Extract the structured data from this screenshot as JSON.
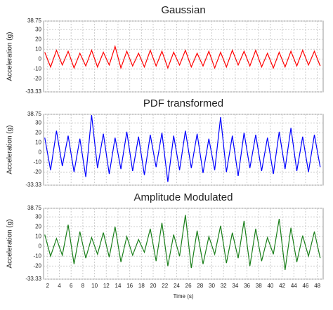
{
  "chart_data": [
    {
      "type": "line",
      "title": "Gaussian",
      "y_label": "Acceleration (g)",
      "color": "#ff0000",
      "x": [
        1.5,
        2.5,
        3.5,
        4.5,
        5.5,
        6.5,
        7.5,
        8.5,
        9.5,
        10.5,
        11.5,
        12.5,
        13.5,
        14.5,
        15.5,
        16.5,
        17.5,
        18.5,
        19.5,
        20.5,
        21.5,
        22.5,
        23.5,
        24.5,
        25.5,
        26.5,
        27.5,
        28.5,
        29.5,
        30.5,
        31.5,
        32.5,
        33.5,
        34.5,
        35.5,
        36.5,
        37.5,
        38.5,
        39.5,
        40.5,
        41.5,
        42.5,
        43.5,
        44.5,
        45.5,
        46.5,
        47.5,
        48.5
      ],
      "values": [
        7,
        -8,
        9,
        -6,
        8,
        -9,
        6,
        -7,
        9,
        -8,
        7,
        -6,
        13,
        -9,
        8,
        -7,
        6,
        -8,
        9,
        -7,
        8,
        -9,
        7,
        -6,
        9,
        -8,
        6,
        -7,
        8,
        -9,
        7,
        -8,
        9,
        -6,
        8,
        -7,
        9,
        -8,
        6,
        -9,
        7,
        -8,
        8,
        -7,
        9,
        -6,
        8,
        -7
      ],
      "xlim": [
        1.3,
        49
      ],
      "xticks": [
        2,
        4,
        6,
        8,
        10,
        12,
        14,
        16,
        18,
        20,
        22,
        24,
        26,
        28,
        30,
        32,
        34,
        36,
        38,
        40,
        42,
        44,
        46,
        48
      ],
      "ylim": [
        -33.33,
        38.75
      ],
      "yticks": [
        -33.33,
        -20,
        -10,
        0,
        10,
        20,
        30,
        38.75
      ],
      "grid": true
    },
    {
      "type": "line",
      "title": "PDF transformed",
      "y_label": "Acceleration (g)",
      "color": "#0000ff",
      "x": [
        1.5,
        2.5,
        3.5,
        4.5,
        5.5,
        6.5,
        7.5,
        8.5,
        9.5,
        10.5,
        11.5,
        12.5,
        13.5,
        14.5,
        15.5,
        16.5,
        17.5,
        18.5,
        19.5,
        20.5,
        21.5,
        22.5,
        23.5,
        24.5,
        25.5,
        26.5,
        27.5,
        28.5,
        29.5,
        30.5,
        31.5,
        32.5,
        33.5,
        34.5,
        35.5,
        36.5,
        37.5,
        38.5,
        39.5,
        40.5,
        41.5,
        42.5,
        43.5,
        44.5,
        45.5,
        46.5,
        47.5,
        48.5
      ],
      "values": [
        15,
        -18,
        22,
        -14,
        17,
        -20,
        14,
        -25,
        38,
        -16,
        19,
        -22,
        15,
        -17,
        21,
        -19,
        16,
        -23,
        18,
        -15,
        20,
        -30,
        17,
        -18,
        22,
        -16,
        19,
        -21,
        14,
        -18,
        36,
        -20,
        17,
        -24,
        20,
        -16,
        18,
        -19,
        15,
        -22,
        21,
        -17,
        25,
        -19,
        16,
        -20,
        18,
        -15
      ],
      "xlim": [
        1.3,
        49
      ],
      "xticks": [
        2,
        4,
        6,
        8,
        10,
        12,
        14,
        16,
        18,
        20,
        22,
        24,
        26,
        28,
        30,
        32,
        34,
        36,
        38,
        40,
        42,
        44,
        46,
        48
      ],
      "ylim": [
        -33.33,
        38.75
      ],
      "yticks": [
        -33.33,
        -20,
        -10,
        0,
        10,
        20,
        30,
        38.75
      ],
      "grid": true
    },
    {
      "type": "line",
      "title": "Amplitude Modulated",
      "y_label": "Acceleration (g)",
      "x_label": "Time (s)",
      "color": "#1a7f1a",
      "x": [
        1.5,
        2.5,
        3.5,
        4.5,
        5.5,
        6.5,
        7.5,
        8.5,
        9.5,
        10.5,
        11.5,
        12.5,
        13.5,
        14.5,
        15.5,
        16.5,
        17.5,
        18.5,
        19.5,
        20.5,
        21.5,
        22.5,
        23.5,
        24.5,
        25.5,
        26.5,
        27.5,
        28.5,
        29.5,
        30.5,
        31.5,
        32.5,
        33.5,
        34.5,
        35.5,
        36.5,
        37.5,
        38.5,
        39.5,
        40.5,
        41.5,
        42.5,
        43.5,
        44.5,
        45.5,
        46.5,
        47.5,
        48.5
      ],
      "values": [
        12,
        -10,
        8,
        -9,
        22,
        -18,
        15,
        -12,
        9,
        -8,
        14,
        -11,
        20,
        -16,
        10,
        -9,
        7,
        -6,
        18,
        -15,
        24,
        -20,
        12,
        -10,
        32,
        -22,
        16,
        -18,
        10,
        -8,
        21,
        -17,
        14,
        -12,
        26,
        -20,
        18,
        -15,
        9,
        -8,
        28,
        -24,
        19,
        -16,
        11,
        -10,
        15,
        -12
      ],
      "xlim": [
        1.3,
        49
      ],
      "xticks": [
        2,
        4,
        6,
        8,
        10,
        12,
        14,
        16,
        18,
        20,
        22,
        24,
        26,
        28,
        30,
        32,
        34,
        36,
        38,
        40,
        42,
        44,
        46,
        48
      ],
      "ylim": [
        -33.33,
        38.75
      ],
      "yticks": [
        -33.33,
        -20,
        -10,
        0,
        10,
        20,
        30,
        38.75
      ],
      "grid": true
    }
  ]
}
